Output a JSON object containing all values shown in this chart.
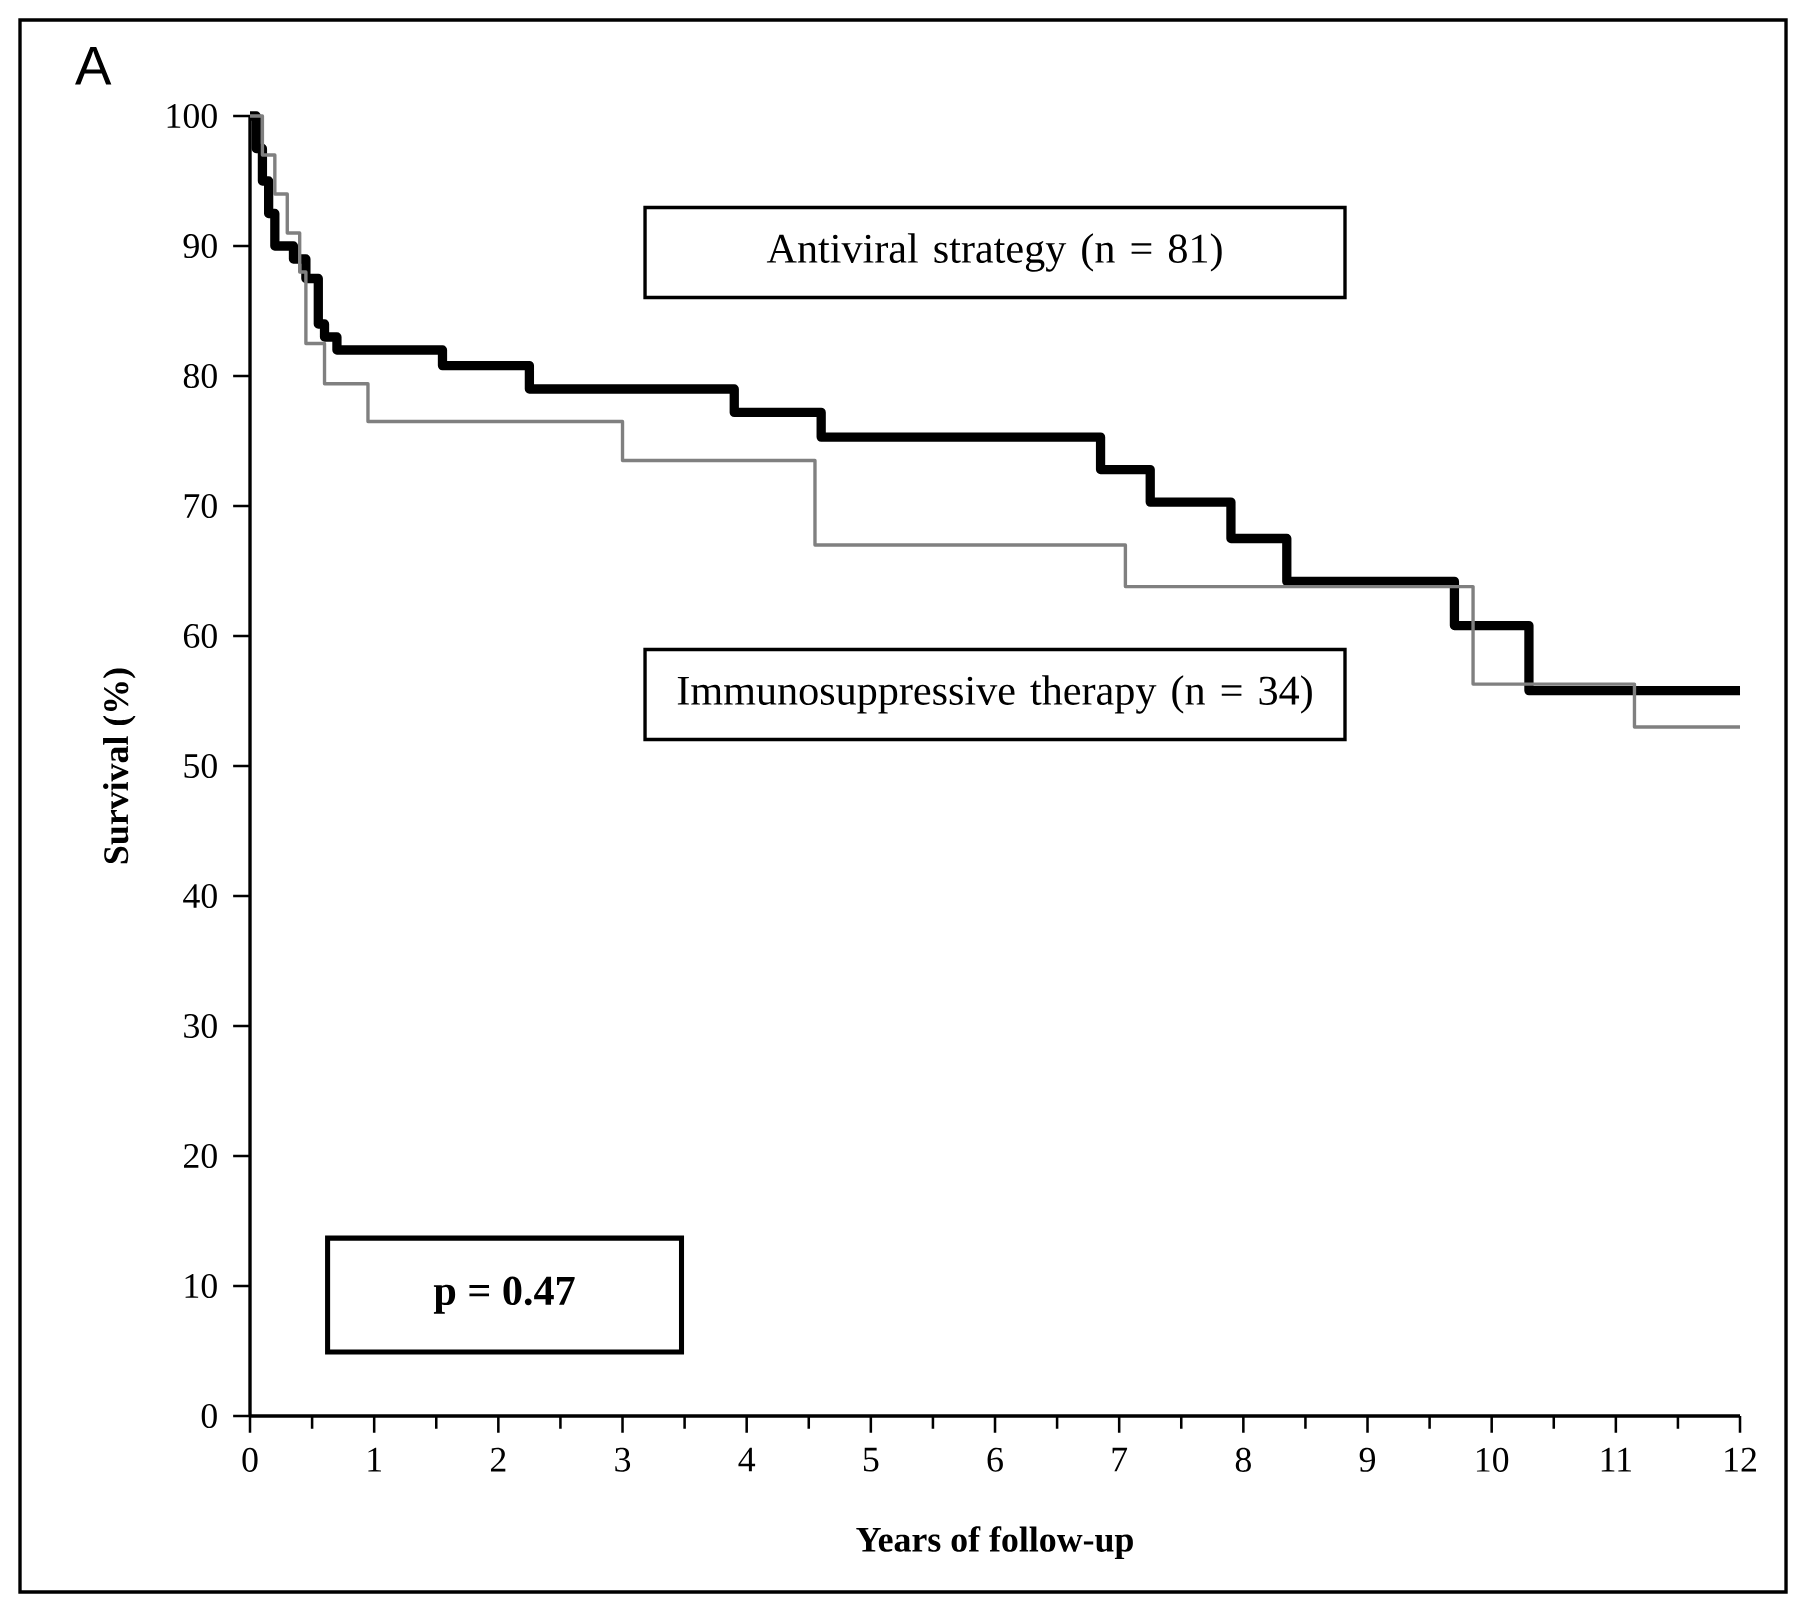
{
  "chart_data": {
    "type": "step",
    "xlabel": "Years of follow-up",
    "ylabel": "Survival (%)",
    "xlim": [
      0,
      12
    ],
    "ylim": [
      0,
      100
    ],
    "xticks": [
      0,
      1,
      2,
      3,
      4,
      5,
      6,
      7,
      8,
      9,
      10,
      11,
      12
    ],
    "yticks": [
      0,
      10,
      20,
      30,
      40,
      50,
      60,
      70,
      80,
      90,
      100
    ],
    "grid": false,
    "legend": false,
    "marker": "none",
    "line_style": "solid",
    "annotations": [
      "A",
      "p = 0.47"
    ],
    "series": [
      {
        "name": "Antiviral strategy (n = 81)",
        "color": "#000000",
        "x": [
          0,
          0.05,
          0.1,
          0.15,
          0.2,
          0.35,
          0.45,
          0.55,
          0.6,
          0.7,
          1.55,
          2.25,
          3.9,
          4.6,
          6.85,
          7.25,
          7.9,
          8.35,
          9.7,
          10.3,
          12
        ],
        "values": [
          100,
          97.5,
          95,
          92.5,
          90,
          89,
          87.5,
          84,
          83,
          82,
          80.8,
          79,
          77.2,
          75.3,
          72.8,
          70.3,
          67.5,
          64.2,
          60.8,
          55.8,
          55.8
        ]
      },
      {
        "name": "Immunosuppressive therapy (n = 34)",
        "color": "#808080",
        "x": [
          0,
          0.1,
          0.2,
          0.3,
          0.4,
          0.45,
          0.6,
          0.95,
          3.0,
          4.55,
          7.05,
          9.85,
          11.15,
          12
        ],
        "values": [
          100,
          97,
          94,
          91,
          88,
          82.5,
          79.4,
          76.5,
          73.5,
          67,
          63.8,
          56.3,
          53,
          53
        ]
      }
    ]
  }
}
